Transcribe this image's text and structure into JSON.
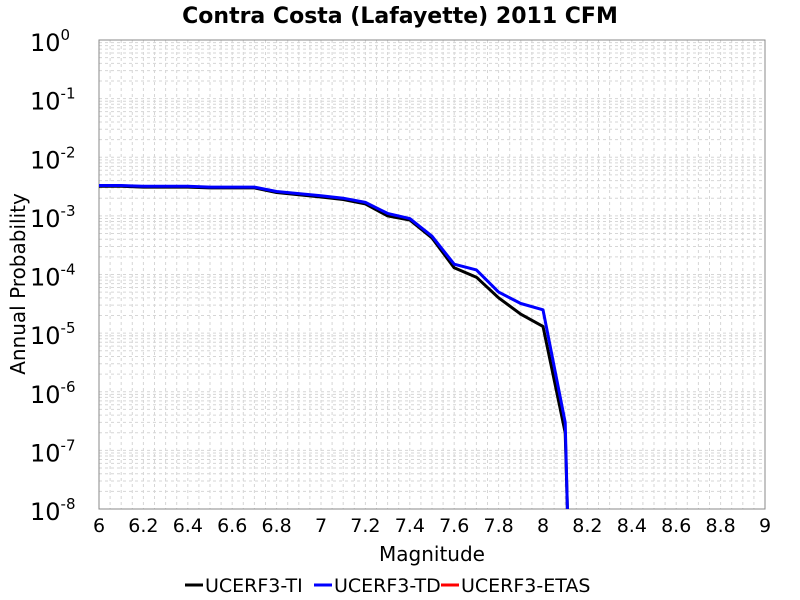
{
  "chart_data": {
    "type": "line",
    "title": "Contra Costa (Lafayette) 2011 CFM",
    "xlabel": "Magnitude",
    "ylabel": "Annual Probability",
    "xlim": [
      6,
      9
    ],
    "ylim": [
      1e-08,
      1
    ],
    "yscale": "log",
    "grid": true,
    "legend_position": "bottom",
    "x_ticks": [
      "6",
      "6.2",
      "6.4",
      "6.6",
      "6.8",
      "7",
      "7.2",
      "7.4",
      "7.6",
      "7.8",
      "8",
      "8.2",
      "8.4",
      "8.6",
      "8.8",
      "9"
    ],
    "y_ticks": [
      {
        "base": "10",
        "exp": "0"
      },
      {
        "base": "10",
        "exp": "-1"
      },
      {
        "base": "10",
        "exp": "-2"
      },
      {
        "base": "10",
        "exp": "-3"
      },
      {
        "base": "10",
        "exp": "-4"
      },
      {
        "base": "10",
        "exp": "-5"
      },
      {
        "base": "10",
        "exp": "-6"
      },
      {
        "base": "10",
        "exp": "-7"
      },
      {
        "base": "10",
        "exp": "-8"
      }
    ],
    "series": [
      {
        "name": "UCERF3-TI",
        "color": "#000000",
        "x": [
          6.0,
          6.1,
          6.2,
          6.3,
          6.4,
          6.5,
          6.6,
          6.7,
          6.8,
          6.9,
          7.0,
          7.1,
          7.2,
          7.3,
          7.4,
          7.5,
          7.6,
          7.7,
          7.8,
          7.9,
          8.0,
          8.1,
          8.11
        ],
        "y": [
          0.0032,
          0.0032,
          0.0031,
          0.0031,
          0.0031,
          0.003,
          0.003,
          0.003,
          0.0025,
          0.0023,
          0.0021,
          0.0019,
          0.0016,
          0.001,
          0.00085,
          0.00042,
          0.00013,
          9e-05,
          4e-05,
          2.1e-05,
          1.3e-05,
          2e-07,
          1e-08
        ]
      },
      {
        "name": "UCERF3-TD",
        "color": "#0000ff",
        "x": [
          6.0,
          6.1,
          6.2,
          6.3,
          6.4,
          6.5,
          6.6,
          6.7,
          6.8,
          6.9,
          7.0,
          7.1,
          7.2,
          7.3,
          7.4,
          7.5,
          7.6,
          7.7,
          7.8,
          7.9,
          8.0,
          8.1,
          8.11
        ],
        "y": [
          0.0033,
          0.0033,
          0.0032,
          0.0032,
          0.0032,
          0.0031,
          0.0031,
          0.0031,
          0.0026,
          0.0024,
          0.0022,
          0.002,
          0.0017,
          0.0011,
          0.0009,
          0.00045,
          0.00015,
          0.00012,
          5e-05,
          3.2e-05,
          2.5e-05,
          3e-07,
          1e-08
        ]
      },
      {
        "name": "UCERF3-ETAS",
        "color": "#ff0000",
        "x": [],
        "y": []
      }
    ]
  }
}
